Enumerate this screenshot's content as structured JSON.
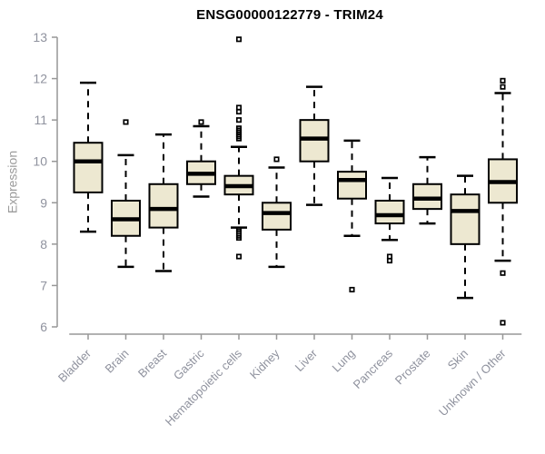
{
  "title": "ENSG00000122779 - TRIM24",
  "chart_data": {
    "type": "boxplot",
    "title": "ENSG00000122779 - TRIM24",
    "xlabel": "",
    "ylabel": "Expression",
    "ylim": [
      6,
      13
    ],
    "yticks": [
      6,
      7,
      8,
      9,
      10,
      11,
      12,
      13
    ],
    "grid": false,
    "legend": "none",
    "colors": {
      "box_fill": "#EDE8D1",
      "box_stroke": "#000000",
      "median": "#000000",
      "whisker": "#000000",
      "axis": "#979797",
      "tick_label": "#8F929E",
      "title_text": "#000000",
      "background": "#FFFFFF"
    },
    "categories": [
      "Bladder",
      "Brain",
      "Breast",
      "Gastric",
      "Hematopoietic cells",
      "Kidney",
      "Liver",
      "Lung",
      "Pancreas",
      "Prostate",
      "Skin",
      "Unknown / Other"
    ],
    "series": [
      {
        "category": "Bladder",
        "low": 8.3,
        "q1": 9.25,
        "median": 10.0,
        "q3": 10.45,
        "high": 11.9,
        "outliers": []
      },
      {
        "category": "Brain",
        "low": 7.45,
        "q1": 8.2,
        "median": 8.6,
        "q3": 9.05,
        "high": 10.15,
        "outliers": [
          10.95
        ]
      },
      {
        "category": "Breast",
        "low": 7.35,
        "q1": 8.4,
        "median": 8.85,
        "q3": 9.45,
        "high": 10.65,
        "outliers": []
      },
      {
        "category": "Gastric",
        "low": 9.15,
        "q1": 9.45,
        "median": 9.7,
        "q3": 10.0,
        "high": 10.85,
        "outliers": [
          10.95
        ]
      },
      {
        "category": "Hematopoietic cells",
        "low": 8.4,
        "q1": 9.2,
        "median": 9.4,
        "q3": 9.65,
        "high": 10.35,
        "outliers": [
          12.95,
          11.3,
          11.2,
          11.0,
          10.8,
          10.75,
          10.7,
          10.65,
          10.6,
          10.55,
          8.35,
          8.3,
          8.2,
          8.15,
          7.7
        ]
      },
      {
        "category": "Kidney",
        "low": 7.45,
        "q1": 8.35,
        "median": 8.75,
        "q3": 9.0,
        "high": 9.85,
        "outliers": [
          10.05
        ]
      },
      {
        "category": "Liver",
        "low": 8.95,
        "q1": 10.0,
        "median": 10.55,
        "q3": 11.0,
        "high": 11.8,
        "outliers": []
      },
      {
        "category": "Lung",
        "low": 8.2,
        "q1": 9.1,
        "median": 9.55,
        "q3": 9.75,
        "high": 10.5,
        "outliers": [
          6.9
        ]
      },
      {
        "category": "Pancreas",
        "low": 8.1,
        "q1": 8.5,
        "median": 8.7,
        "q3": 9.05,
        "high": 9.6,
        "outliers": [
          7.7,
          7.6
        ]
      },
      {
        "category": "Prostate",
        "low": 8.5,
        "q1": 8.85,
        "median": 9.1,
        "q3": 9.45,
        "high": 10.1,
        "outliers": []
      },
      {
        "category": "Skin",
        "low": 6.7,
        "q1": 8.0,
        "median": 8.8,
        "q3": 9.2,
        "high": 9.65,
        "outliers": []
      },
      {
        "category": "Unknown / Other",
        "low": 7.6,
        "q1": 9.0,
        "median": 9.5,
        "q3": 10.05,
        "high": 11.65,
        "outliers": [
          11.95,
          11.8,
          7.3,
          6.1
        ]
      }
    ]
  }
}
